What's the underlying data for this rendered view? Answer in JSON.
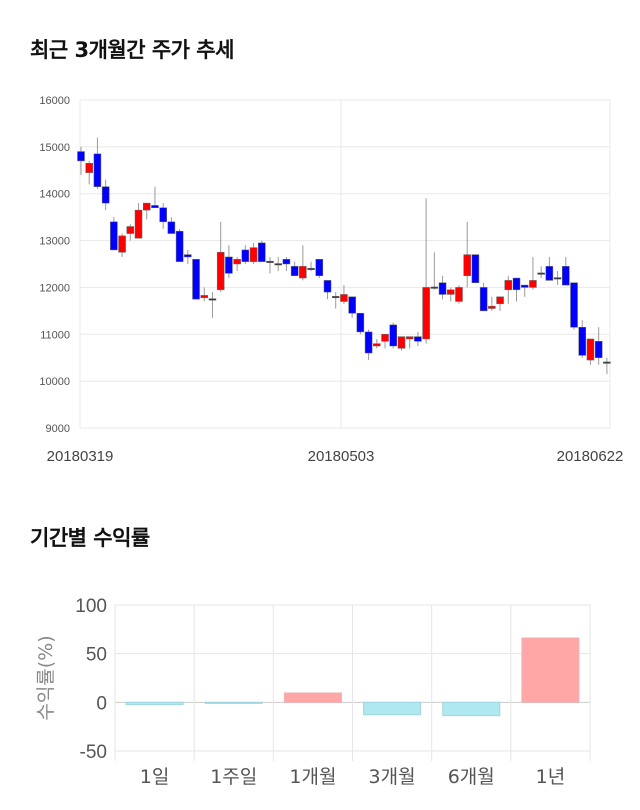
{
  "sections": {
    "price_title": "최근 3개월간 주가 추세",
    "return_title": "기간별 수익률"
  },
  "colors": {
    "up": "#ff0000",
    "down": "#0000ff",
    "return_positive": "#ffa6a6",
    "return_negative": "#b0e8f0"
  },
  "chart_data": [
    {
      "type": "candlestick",
      "ylim": [
        9000,
        16000
      ],
      "yticks": [
        "9000",
        "10000",
        "11000",
        "12000",
        "13000",
        "14000",
        "15000",
        "16000"
      ],
      "xtick_labels": [
        "20180319",
        "20180503",
        "20180622"
      ],
      "grid": true,
      "ohlc": [
        [
          14900,
          15000,
          14400,
          14700
        ],
        [
          14450,
          14700,
          14200,
          14650
        ],
        [
          14850,
          15200,
          14100,
          14150
        ],
        [
          14150,
          14300,
          13650,
          13800
        ],
        [
          13400,
          13500,
          12800,
          12800
        ],
        [
          12750,
          13150,
          12650,
          13100
        ],
        [
          13150,
          13350,
          13000,
          13300
        ],
        [
          13050,
          13800,
          13050,
          13650
        ],
        [
          13650,
          13800,
          13450,
          13800
        ],
        [
          13750,
          14150,
          13700,
          13700
        ],
        [
          13700,
          13800,
          13250,
          13400
        ],
        [
          13400,
          13500,
          13150,
          13150
        ],
        [
          13200,
          13250,
          12550,
          12550
        ],
        [
          12700,
          12800,
          12500,
          12650
        ],
        [
          12600,
          12600,
          11750,
          11750
        ],
        [
          11780,
          12000,
          11700,
          11830
        ],
        [
          11750,
          11900,
          11350,
          11760
        ],
        [
          11950,
          13400,
          11900,
          12750
        ],
        [
          12650,
          12900,
          12200,
          12300
        ],
        [
          12500,
          12650,
          12350,
          12600
        ],
        [
          12800,
          12900,
          12500,
          12550
        ],
        [
          12550,
          12950,
          12500,
          12850
        ],
        [
          12950,
          13000,
          12550,
          12550
        ],
        [
          12550,
          12650,
          12300,
          12560
        ],
        [
          12500,
          12650,
          12350,
          12510
        ],
        [
          12600,
          12650,
          12350,
          12500
        ],
        [
          12450,
          12550,
          12250,
          12250
        ],
        [
          12200,
          12900,
          12150,
          12450
        ],
        [
          12400,
          12550,
          12350,
          12410
        ],
        [
          12600,
          12600,
          12200,
          12250
        ],
        [
          12150,
          12150,
          11750,
          11900
        ],
        [
          11800,
          11900,
          11550,
          11810
        ],
        [
          11700,
          12050,
          11650,
          11850
        ],
        [
          11800,
          11800,
          11350,
          11450
        ],
        [
          11450,
          11450,
          11000,
          11050
        ],
        [
          11050,
          11100,
          10450,
          10600
        ],
        [
          10750,
          10900,
          10700,
          10800
        ],
        [
          10850,
          11000,
          10700,
          11000
        ],
        [
          11200,
          11250,
          10700,
          10750
        ],
        [
          10700,
          10950,
          10650,
          10950
        ],
        [
          10900,
          10950,
          10700,
          10950
        ],
        [
          10950,
          11050,
          10750,
          10850
        ],
        [
          10900,
          13900,
          10800,
          12000
        ],
        [
          12000,
          12750,
          11950,
          12010
        ],
        [
          12100,
          12250,
          11750,
          11850
        ],
        [
          11850,
          12000,
          11700,
          11950
        ],
        [
          11700,
          12050,
          11650,
          12000
        ],
        [
          12250,
          13400,
          12000,
          12700
        ],
        [
          12700,
          12700,
          12100,
          12100
        ],
        [
          12000,
          12100,
          11500,
          11500
        ],
        [
          11550,
          11800,
          11500,
          11600
        ],
        [
          11650,
          11800,
          11500,
          11800
        ],
        [
          11950,
          12250,
          11650,
          12150
        ],
        [
          12200,
          12200,
          11700,
          11950
        ],
        [
          12050,
          12050,
          11800,
          12000
        ],
        [
          12000,
          12650,
          11950,
          12150
        ],
        [
          12300,
          12450,
          12200,
          12310
        ],
        [
          12450,
          12650,
          12150,
          12150
        ],
        [
          12200,
          12350,
          12050,
          12210
        ],
        [
          12450,
          12650,
          12050,
          12050
        ],
        [
          12100,
          12100,
          11100,
          11150
        ],
        [
          11150,
          11300,
          10500,
          10550
        ],
        [
          10450,
          10900,
          10350,
          10900
        ],
        [
          10850,
          11150,
          10350,
          10500
        ],
        [
          10400,
          10500,
          10150,
          10410
        ]
      ]
    },
    {
      "type": "bar",
      "ylabel": "수익률(%)",
      "ylim": [
        -50,
        100
      ],
      "yticks": [
        "-50",
        "0",
        "50",
        "100"
      ],
      "categories": [
        "1일",
        "1주일",
        "1개월",
        "3개월",
        "6개월",
        "1년"
      ],
      "values": [
        -2.4,
        -0.5,
        9.6,
        -12.7,
        -13.7,
        66.1
      ],
      "grid": true
    }
  ]
}
